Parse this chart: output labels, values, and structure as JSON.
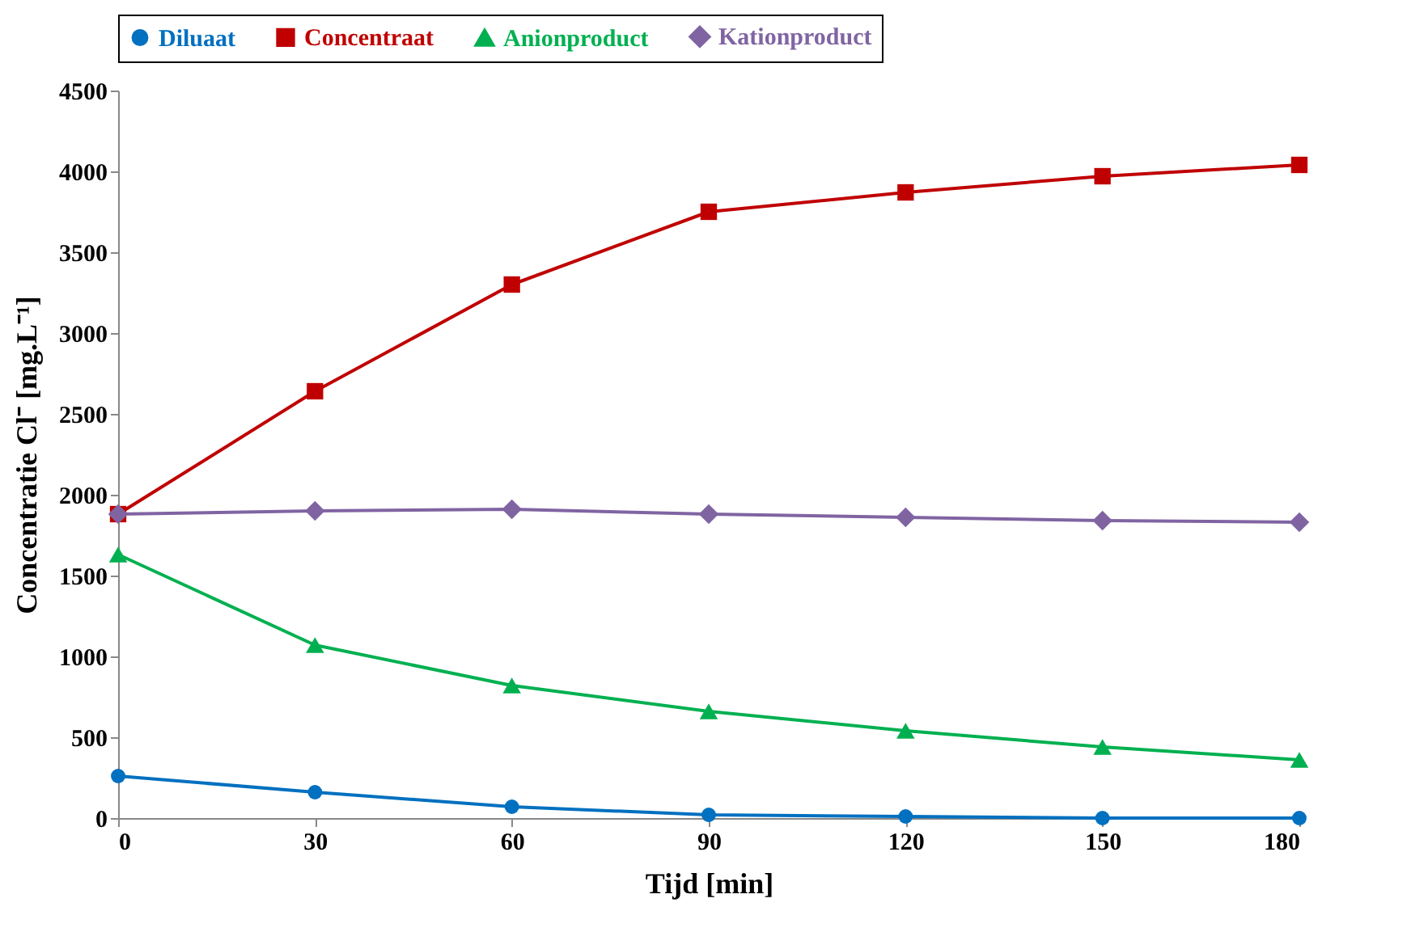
{
  "chart_data": {
    "type": "line",
    "xlabel": "Tijd [min]",
    "ylabel": "Concentratie Cl⁻ [mg.L⁻¹]",
    "x": [
      0,
      30,
      60,
      90,
      120,
      150,
      180
    ],
    "xlim": [
      0,
      180
    ],
    "xticks": [
      0,
      30,
      60,
      90,
      120,
      150,
      180
    ],
    "ylim": [
      0,
      4500
    ],
    "yticks": [
      0,
      500,
      1000,
      1500,
      2000,
      2500,
      3000,
      3500,
      4000,
      4500
    ],
    "grid": false,
    "legend": "top",
    "line_style": "solid",
    "series": [
      {
        "name": "Diluaat",
        "color": "#0070c0",
        "marker": "circle",
        "values": [
          260,
          160,
          70,
          20,
          10,
          0,
          0
        ]
      },
      {
        "name": "Concentraat",
        "color": "#c00000",
        "marker": "square",
        "values": [
          1880,
          2640,
          3300,
          3750,
          3870,
          3970,
          4040
        ]
      },
      {
        "name": "Anionproduct",
        "color": "#00b050",
        "marker": "triangle",
        "values": [
          1630,
          1070,
          820,
          660,
          540,
          440,
          360
        ]
      },
      {
        "name": "Kationproduct",
        "color": "#8064a2",
        "marker": "diamond",
        "values": [
          1880,
          1900,
          1910,
          1880,
          1860,
          1840,
          1830
        ]
      }
    ]
  }
}
